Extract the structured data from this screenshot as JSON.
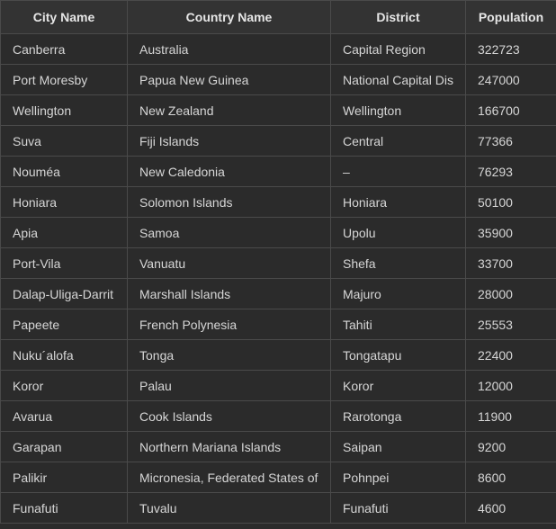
{
  "table": {
    "headers": [
      "City Name",
      "Country Name",
      "District",
      "Population"
    ],
    "rows": [
      [
        "Canberra",
        "Australia",
        "Capital Region",
        "322723"
      ],
      [
        "Port Moresby",
        "Papua New Guinea",
        "National Capital Dis",
        "247000"
      ],
      [
        "Wellington",
        "New Zealand",
        "Wellington",
        "166700"
      ],
      [
        "Suva",
        "Fiji Islands",
        "Central",
        "77366"
      ],
      [
        "Nouméa",
        "New Caledonia",
        "–",
        "76293"
      ],
      [
        "Honiara",
        "Solomon Islands",
        "Honiara",
        "50100"
      ],
      [
        "Apia",
        "Samoa",
        "Upolu",
        "35900"
      ],
      [
        "Port-Vila",
        "Vanuatu",
        "Shefa",
        "33700"
      ],
      [
        "Dalap-Uliga-Darrit",
        "Marshall Islands",
        "Majuro",
        "28000"
      ],
      [
        "Papeete",
        "French Polynesia",
        "Tahiti",
        "25553"
      ],
      [
        "Nuku´alofa",
        "Tonga",
        "Tongatapu",
        "22400"
      ],
      [
        "Koror",
        "Palau",
        "Koror",
        "12000"
      ],
      [
        "Avarua",
        "Cook Islands",
        "Rarotonga",
        "11900"
      ],
      [
        "Garapan",
        "Northern Mariana Islands",
        "Saipan",
        "9200"
      ],
      [
        "Palikir",
        "Micronesia, Federated States of",
        "Pohnpei",
        "8600"
      ],
      [
        "Funafuti",
        "Tuvalu",
        "Funafuti",
        "4600"
      ]
    ]
  }
}
